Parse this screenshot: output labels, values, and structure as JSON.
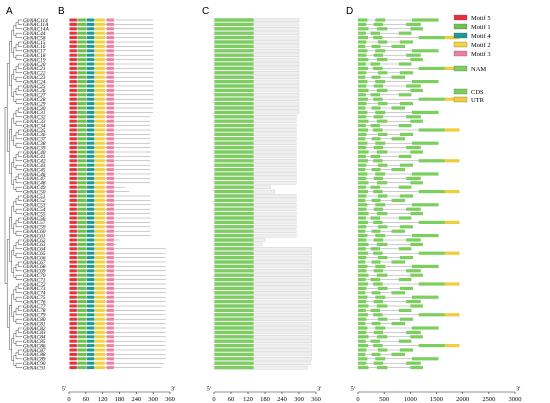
{
  "panels": {
    "a": "A",
    "b": "B",
    "c": "C",
    "d": "D"
  },
  "gene_names": [
    "GhNAC114",
    "GhNAC11A",
    "GhNAC14A",
    "GhNAC44",
    "GhNAC58",
    "GhNAC15",
    "GhNAC16",
    "GhNAC17",
    "GhNAC18",
    "GhNAC19",
    "GhNAC20",
    "GhNAC21",
    "GhNAC22",
    "GhNAC23",
    "GhNAC24",
    "GhNAC25",
    "GhNAC26",
    "GhNAC27",
    "GhNAC28",
    "GhNAC29",
    "GhNAC30",
    "GhNAC31",
    "GhNAC32",
    "GhNAC33",
    "GhNAC34",
    "GhNAC35",
    "GhNAC36",
    "GhNAC37",
    "GhNAC38",
    "GhNAC39",
    "GhNAC40",
    "GhNAC41",
    "GhNAC42",
    "GhNAC43",
    "GhNAC45",
    "GhNAC46",
    "GhNAC47",
    "GhNAC48",
    "GhNAC49",
    "GhNAC50",
    "GhNAC51",
    "GhNAC52",
    "GhNAC53",
    "GhNAC54",
    "GhNAC55",
    "GhNAC56",
    "GhNAC57",
    "GhNAC59",
    "GhNAC60",
    "GhNAC61",
    "GhNAC62",
    "GhNAC63",
    "GhNAC64",
    "GhNAC65",
    "GhNAC66",
    "GhNAC67",
    "GhNAC68",
    "GhNAC69",
    "GhNAC70",
    "GhNAC71",
    "GhNAC72",
    "GhNAC73",
    "GhNAC74",
    "GhNAC75",
    "GhNAC76",
    "GhNAC77",
    "GhNAC78",
    "GhNAC79",
    "GhNAC80",
    "GhNAC81",
    "GhNAC82",
    "GhNAC83",
    "GhNAC84",
    "GhNAC85",
    "GhNAC86",
    "GhNAC87",
    "GhNAC88",
    "GhNAC89",
    "GhNAC90",
    "GhNAC91"
  ],
  "protein_lengths": [
    300,
    300,
    300,
    300,
    300,
    300,
    300,
    300,
    300,
    300,
    300,
    300,
    300,
    300,
    300,
    300,
    300,
    300,
    300,
    300,
    300,
    300,
    290,
    290,
    290,
    290,
    290,
    290,
    290,
    290,
    290,
    290,
    290,
    290,
    290,
    290,
    290,
    290,
    200,
    215,
    290,
    290,
    290,
    290,
    290,
    290,
    290,
    290,
    290,
    290,
    180,
    170,
    345,
    345,
    345,
    345,
    345,
    345,
    345,
    345,
    345,
    345,
    345,
    345,
    345,
    345,
    345,
    345,
    345,
    345,
    345,
    345,
    345,
    345,
    345,
    345,
    345,
    345,
    340,
    330
  ],
  "axis_b": {
    "ticks": [
      "0",
      "60",
      "120",
      "180",
      "240",
      "300",
      "360"
    ],
    "max": 360,
    "start": "5'",
    "end": "3'"
  },
  "axis_c": {
    "ticks": [
      "0",
      "60",
      "120",
      "180",
      "240",
      "300",
      "360"
    ],
    "max": 360,
    "start": "5'",
    "end": "3'"
  },
  "axis_d": {
    "ticks": [
      "0",
      "500",
      "1000",
      "1500",
      "2000",
      "2500",
      "3000"
    ],
    "max": 3000,
    "start": "5'",
    "end": "3'"
  },
  "legend": {
    "motif5": "Motif 5",
    "motif1": "Motif 1",
    "motif4": "Motif 4",
    "motif2": "Motif 2",
    "motif3": "Motif 3",
    "nam": "NAM",
    "cds": "CDS",
    "utr": "UTR"
  },
  "colors": {
    "motif5": "#e8313c",
    "motif1": "#6cc24a",
    "motif4": "#1a9b9b",
    "motif2": "#f2d43a",
    "motif3": "#ee7ea2",
    "nam": "#7ccf5f",
    "cds": "#7ccf5f",
    "utr": "#f2cc3a",
    "line": "#9a9a9a"
  }
}
